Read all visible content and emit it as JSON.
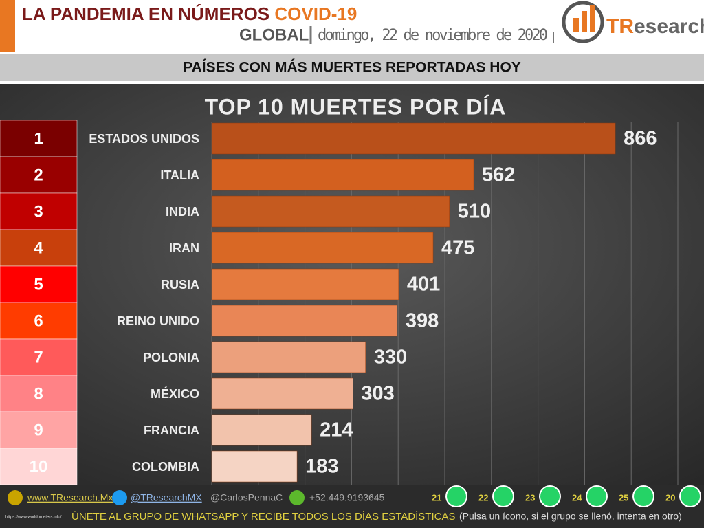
{
  "header": {
    "title": "LA PANDEMIA EN NÚMEROS",
    "title_highlight": "COVID-19",
    "scope": "GLOBAL",
    "date": "domingo, 22 de noviembre de 2020",
    "logo_prefix": "TR",
    "logo_suffix": "esearch"
  },
  "subtitle": "PAÍSES CON MÁS MUERTES REPORTADAS HOY",
  "chart_data": {
    "type": "hbar",
    "title": "TOP 10 MUERTES POR DÍA",
    "ranks": [
      1,
      2,
      3,
      4,
      5,
      6,
      7,
      8,
      9,
      10
    ],
    "rank_colors": [
      "#7a0000",
      "#990000",
      "#c00000",
      "#c8400c",
      "#ff0000",
      "#ff3c00",
      "#ff5a5a",
      "#ff8286",
      "#ffa4a4",
      "#ffd6d6"
    ],
    "categories": [
      "ESTADOS UNIDOS",
      "ITALIA",
      "INDIA",
      "IRAN",
      "RUSIA",
      "REINO UNIDO",
      "POLONIA",
      "MÉXICO",
      "FRANCIA",
      "COLOMBIA"
    ],
    "values": [
      866,
      562,
      510,
      475,
      401,
      398,
      330,
      303,
      214,
      183
    ],
    "colors": [
      "#b9501a",
      "#d3601f",
      "#c55a1f",
      "#d96825",
      "#e57a3e",
      "#e98656",
      "#eca07c",
      "#efb093",
      "#f2c3ac",
      "#f5d4c4"
    ],
    "xlim": [
      0,
      1000
    ],
    "xticks": [
      0,
      100,
      200,
      300,
      400,
      500,
      600,
      700,
      800,
      900,
      1000
    ],
    "grid": true
  },
  "footer": {
    "website": "www.TResearch.Mx",
    "twitter": "@TResearchMX",
    "twitter2": "@CarlosPennaC",
    "phone": "+52.449.9193645",
    "groups": [
      "21",
      "22",
      "23",
      "24",
      "25",
      "20"
    ],
    "call": "ÚNETE AL GRUPO DE WHATSAPP Y RECIBE TODOS LOS DÍAS ESTADÍSTICAS",
    "note": "(Pulsa un ícono, si el grupo se llenó, intenta en otro)",
    "source": "https://www.worldometers.info/"
  }
}
